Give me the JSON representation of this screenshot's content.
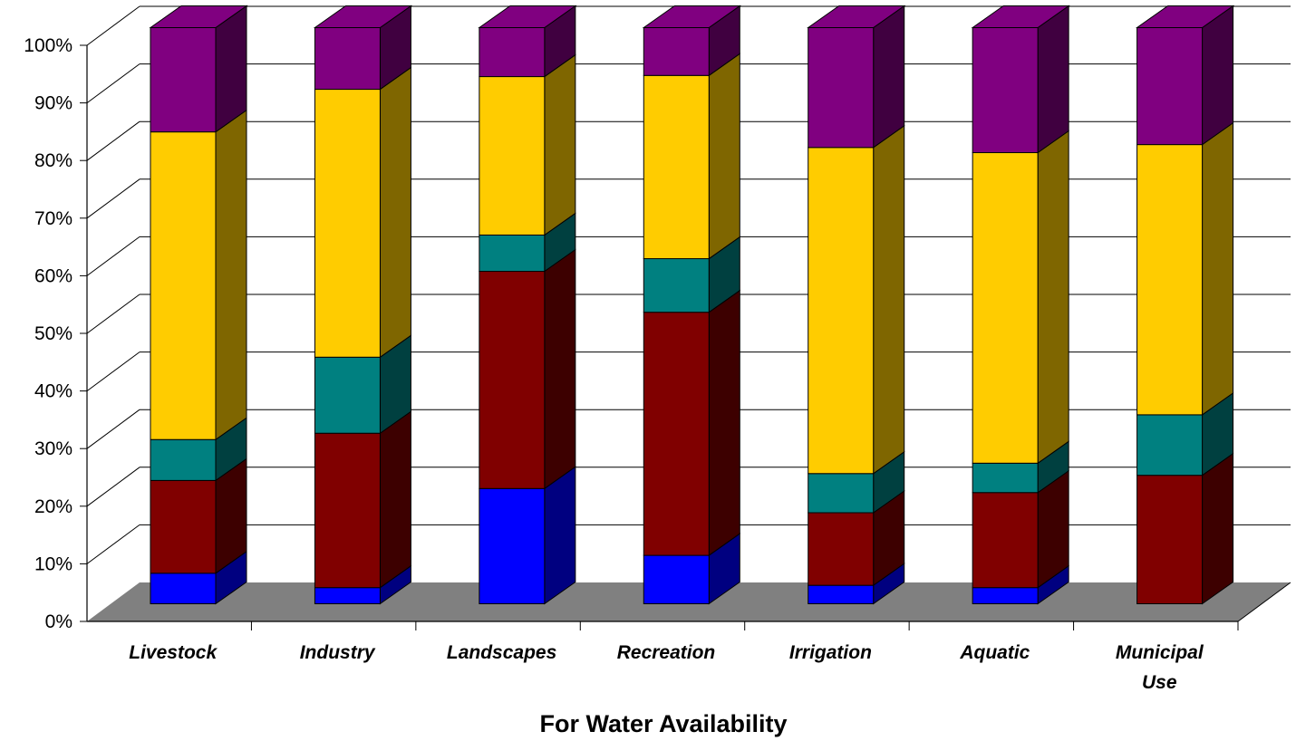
{
  "chart_data": {
    "type": "bar",
    "stacked": true,
    "three_d": true,
    "percent_stacked": true,
    "title": "",
    "xlabel": "For Water Availability",
    "ylabel": "",
    "ylim": [
      0,
      100
    ],
    "y_ticks": [
      "0%",
      "10%",
      "20%",
      "30%",
      "40%",
      "50%",
      "60%",
      "70%",
      "80%",
      "90%",
      "100%"
    ],
    "grid": true,
    "legend": "none",
    "categories": [
      [
        "Livestock"
      ],
      [
        "Industry"
      ],
      [
        "Landscapes"
      ],
      [
        "Recreation"
      ],
      [
        "Irrigation"
      ],
      [
        "Aquatic"
      ],
      [
        "Municipal",
        "Use"
      ]
    ],
    "series": [
      {
        "color": "#0000FF",
        "side_color": "#000080",
        "top_color": "#6666FF",
        "values": [
          5.3,
          2.8,
          20,
          8.4,
          3.2,
          2.8,
          0
        ]
      },
      {
        "color": "#800000",
        "side_color": "#3D0000",
        "top_color": "#B34D4D",
        "values": [
          16.1,
          26.8,
          37.7,
          42.2,
          12.6,
          16.5,
          22.3
        ]
      },
      {
        "color": "#008080",
        "side_color": "#004040",
        "top_color": "#4DB3B3",
        "values": [
          7.1,
          13.2,
          6.3,
          9.3,
          6.8,
          5.1,
          10.5
        ]
      },
      {
        "color": "#FFCC00",
        "side_color": "#7F6600",
        "top_color": "#FFE066",
        "values": [
          53.4,
          46.5,
          27.5,
          31.8,
          56.6,
          53.9,
          46.9
        ]
      },
      {
        "color": "#800080",
        "side_color": "#400040",
        "top_color": "#B34DB3",
        "values": [
          18.1,
          10.7,
          8.5,
          8.3,
          20.8,
          21.7,
          20.3
        ]
      }
    ]
  }
}
